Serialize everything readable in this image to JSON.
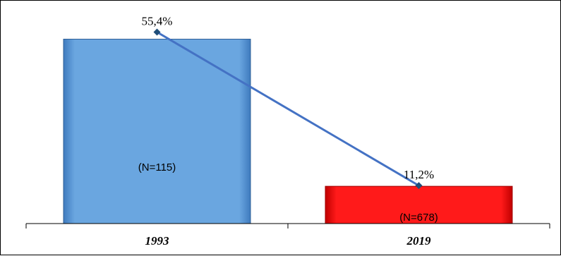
{
  "chart_data": {
    "type": "bar",
    "categories": [
      "1993",
      "2019"
    ],
    "values": [
      55.4,
      11.2
    ],
    "value_labels": [
      "55,4%",
      "11,2%"
    ],
    "bar_annotations": [
      "(N=115)",
      "(N=678)"
    ],
    "bar_colors": [
      "#5b9bd5",
      "#ff0000"
    ],
    "line_overlay": {
      "values": [
        55.4,
        11.2
      ],
      "color": "#4472c4",
      "marker": "diamond"
    },
    "ylim": [
      0,
      60
    ],
    "grid": false,
    "legend": "none"
  }
}
